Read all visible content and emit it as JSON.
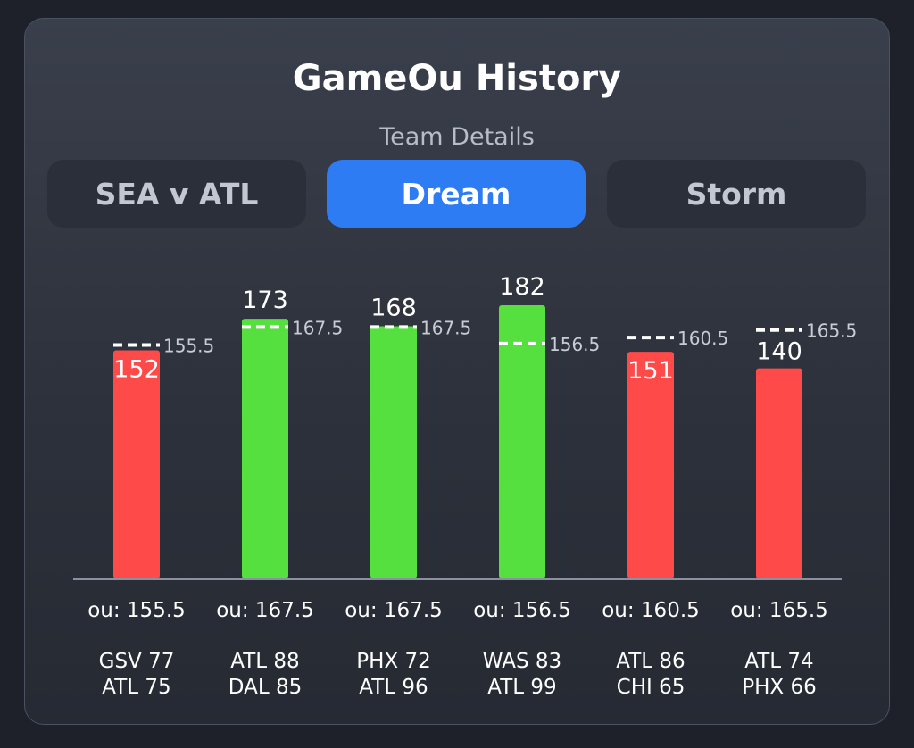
{
  "header": {
    "title": "GameOu History",
    "subtitle": "Team Details"
  },
  "tabs": [
    {
      "label": "SEA v ATL",
      "active": false
    },
    {
      "label": "Dream",
      "active": true
    },
    {
      "label": "Storm",
      "active": false
    }
  ],
  "colors": {
    "over": "#55e03f",
    "under": "#ff4a4a",
    "active_tab": "#2d7cf4",
    "line": "#ffffff"
  },
  "chart_data": {
    "type": "bar",
    "categories": [
      "GSV 77 / ATL 75",
      "ATL 88 / DAL 85",
      "PHX 72 / ATL 96",
      "WAS 83 / ATL 99",
      "ATL 86 / CHI 65",
      "ATL 74 / PHX 66"
    ],
    "values": [
      152,
      173,
      168,
      182,
      151,
      140
    ],
    "value_labels": [
      "152",
      "173",
      "168",
      "182",
      "151",
      "140"
    ],
    "ou_lines": [
      155.5,
      167.5,
      167.5,
      156.5,
      160.5,
      165.5
    ],
    "ou_line_labels": [
      "155.5",
      "167.5",
      "167.5",
      "156.5",
      "160.5",
      "165.5"
    ],
    "ou_labels": [
      "ou: 155.5",
      "ou: 167.5",
      "ou: 167.5",
      "ou: 156.5",
      "ou: 160.5",
      "ou: 165.5"
    ],
    "games": [
      [
        "GSV 77",
        "ATL 75"
      ],
      [
        "ATL 88",
        "DAL 85"
      ],
      [
        "PHX 72",
        "ATL 96"
      ],
      [
        "WAS 83",
        "ATL 99"
      ],
      [
        "ATL 86",
        "CHI 65"
      ],
      [
        "ATL 74",
        "PHX 66"
      ]
    ],
    "results": [
      "under",
      "over",
      "over",
      "over",
      "under",
      "under"
    ],
    "ylim": [
      0,
      182
    ],
    "grid": false,
    "legend": "none",
    "title": "",
    "xlabel": "",
    "ylabel": ""
  }
}
